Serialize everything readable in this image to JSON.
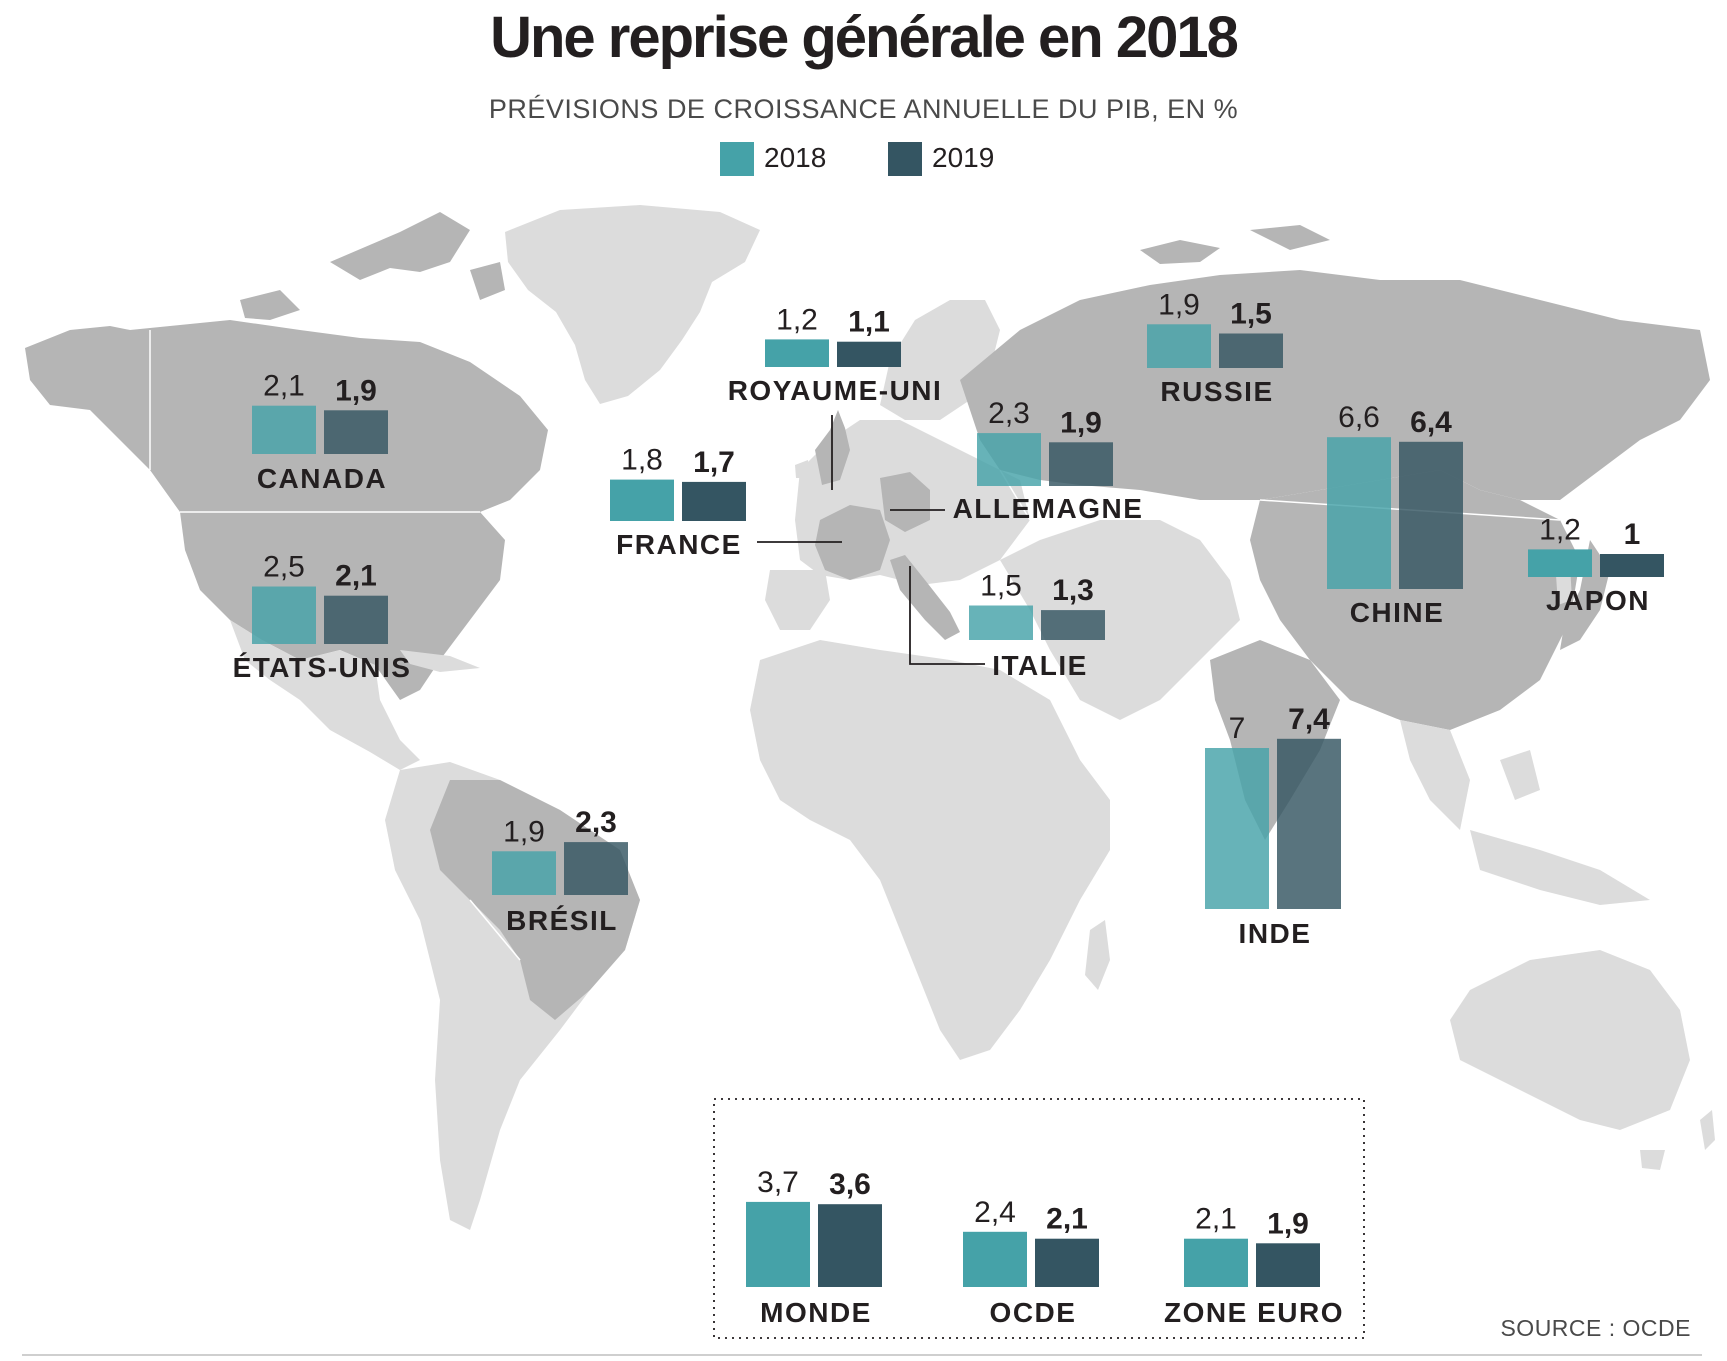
{
  "title": "Une reprise générale en 2018",
  "subtitle": "PRÉVISIONS DE CROISSANCE ANNUELLE DU PIB, EN %",
  "legend": [
    {
      "label": "2018",
      "color": "#45a2a8"
    },
    {
      "label": "2019",
      "color": "#345562"
    }
  ],
  "source": "SOURCE : OCDE",
  "chart_data": [
    {
      "type": "bar",
      "series": [
        {
          "name": "2018",
          "values": [
            2.1,
            2.5,
            1.9,
            1.8,
            1.2,
            2.3,
            1.5,
            1.9,
            6.6,
            1.2,
            7
          ]
        },
        {
          "name": "2019",
          "values": [
            1.9,
            2.1,
            2.3,
            1.7,
            1.1,
            1.9,
            1.3,
            1.5,
            6.4,
            1,
            7.4
          ]
        }
      ],
      "categories": [
        "CANADA",
        "ÉTATS-UNIS",
        "BRÉSIL",
        "FRANCE",
        "ROYAUME-UNI",
        "ALLEMAGNE",
        "ITALIE",
        "RUSSIE",
        "CHINE",
        "JAPON",
        "INDE"
      ],
      "value_labels": {
        "2018": [
          "2,1",
          "2,5",
          "1,9",
          "1,8",
          "1,2",
          "2,3",
          "1,5",
          "1,9",
          "6,6",
          "1,2",
          "7"
        ],
        "2019": [
          "1,9",
          "2,1",
          "2,3",
          "1,7",
          "1,1",
          "1,9",
          "1,3",
          "1,5",
          "6,4",
          "1",
          "7,4"
        ]
      }
    },
    {
      "type": "bar",
      "series": [
        {
          "name": "2018",
          "values": [
            3.7,
            2.4,
            2.1
          ]
        },
        {
          "name": "2019",
          "values": [
            3.6,
            2.1,
            1.9
          ]
        }
      ],
      "categories": [
        "MONDE",
        "OCDE",
        "ZONE EURO"
      ],
      "value_labels": {
        "2018": [
          "3,7",
          "2,4",
          "2,1"
        ],
        "2019": [
          "3,6",
          "2,1",
          "1,9"
        ]
      }
    }
  ]
}
